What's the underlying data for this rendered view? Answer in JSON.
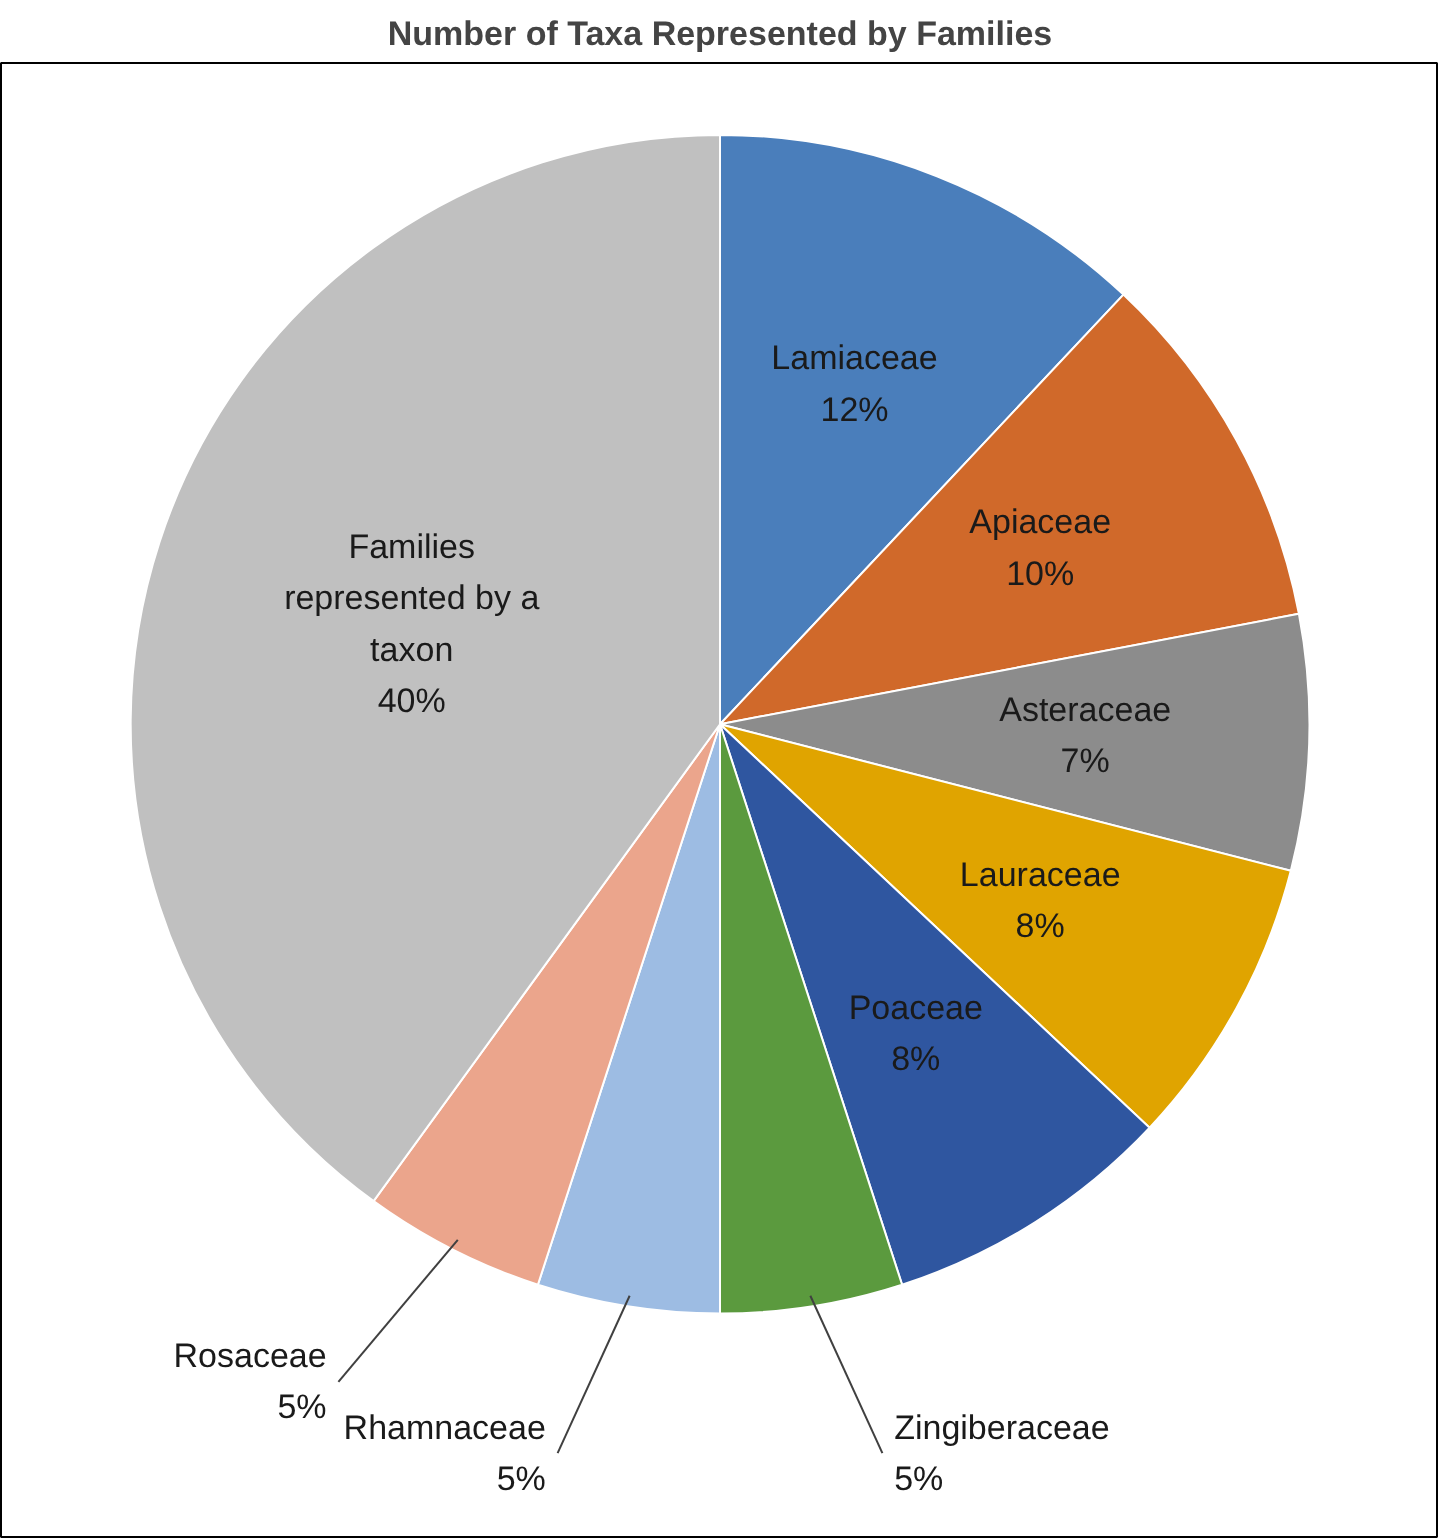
{
  "chart_data": {
    "type": "pie",
    "title": "Number of Taxa Represented by Families",
    "categories": [
      "Lamiaceae",
      "Apiaceae",
      "Asteraceae",
      "Lauraceae",
      "Poaceae",
      "Zingiberaceae",
      "Rhamnaceae",
      "Rosaceae",
      "Families represented by a taxon"
    ],
    "values": [
      12,
      10,
      7,
      8,
      8,
      5,
      5,
      5,
      40
    ],
    "colors": [
      "#4a7ebb",
      "#d0692a",
      "#8c8c8c",
      "#e0a400",
      "#2f56a0",
      "#5b9a3e",
      "#9dbce3",
      "#eba58c",
      "#c0c0c0"
    ],
    "value_labels": [
      "12%",
      "10%",
      "7%",
      "8%",
      "8%",
      "5%",
      "5%",
      "5%",
      "40%"
    ]
  }
}
